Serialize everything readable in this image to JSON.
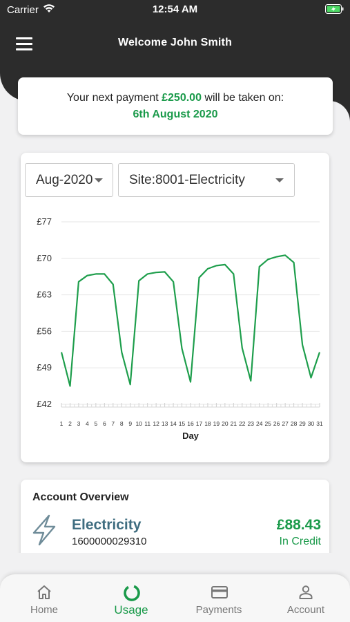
{
  "status_bar": {
    "carrier": "Carrier",
    "time": "12:54 AM"
  },
  "header": {
    "title": "Welcome John Smith",
    "menu_icon": "hamburger-menu-icon"
  },
  "payment": {
    "prefix": "Your next payment ",
    "amount": "£250.00",
    "suffix": " will be taken on:",
    "date": "6th August 2020"
  },
  "usage": {
    "month_select": "Aug-2020",
    "site_select": "Site:8001-Electricity"
  },
  "chart_data": {
    "type": "line",
    "xlabel": "Day",
    "ylabel": "",
    "x": [
      1,
      2,
      3,
      4,
      5,
      6,
      7,
      8,
      9,
      10,
      11,
      12,
      13,
      14,
      15,
      16,
      17,
      18,
      19,
      20,
      21,
      22,
      23,
      24,
      25,
      26,
      27,
      28,
      29,
      30,
      31
    ],
    "values": [
      52,
      45.5,
      65.5,
      66.7,
      67,
      67,
      65,
      52,
      45.8,
      65.7,
      67,
      67.3,
      67.4,
      65.5,
      52.7,
      46.3,
      66.3,
      68,
      68.6,
      68.8,
      67,
      52.8,
      46.5,
      68.4,
      69.8,
      70.3,
      70.6,
      69.2,
      53.4,
      47.1,
      52
    ],
    "yticks": [
      "£42",
      "£49",
      "£56",
      "£63",
      "£70",
      "£77"
    ],
    "ylim": [
      42,
      77
    ],
    "grid": true,
    "line_color": "#1e9e4c"
  },
  "account": {
    "title": "Account Overview",
    "name": "Electricity",
    "number": "1600000029310",
    "balance": "£88.43",
    "status": "In Credit",
    "icon": "lightning-bolt-icon"
  },
  "nav": {
    "items": [
      {
        "label": "Home",
        "icon": "home-icon"
      },
      {
        "label": "Usage",
        "icon": "usage-ring-icon"
      },
      {
        "label": "Payments",
        "icon": "credit-card-icon"
      },
      {
        "label": "Account",
        "icon": "person-icon"
      }
    ],
    "active": "Usage"
  },
  "colors": {
    "accent": "#1a9a4a",
    "header": "#2c2c2c",
    "account_name": "#3f6d80"
  }
}
